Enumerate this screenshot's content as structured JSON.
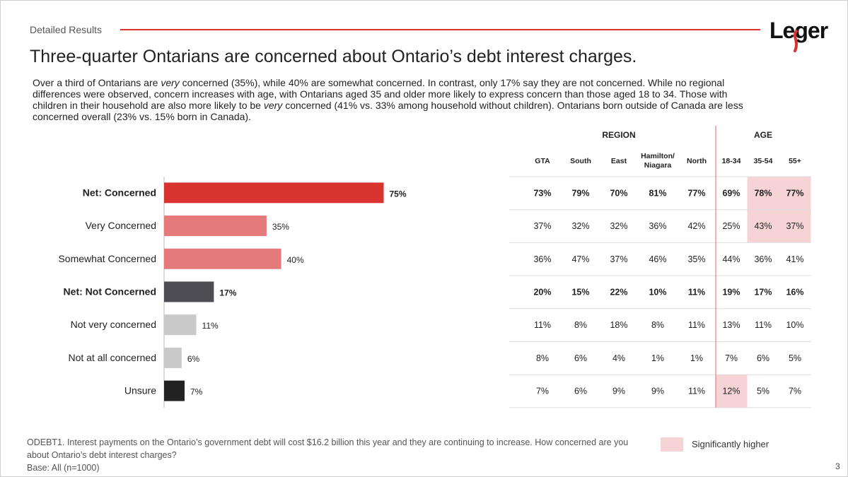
{
  "header": {
    "section_label": "Detailed Results",
    "logo_text": "Leger",
    "title": "Three-quarter Ontarians are concerned about Ontario’s debt interest charges."
  },
  "summary": {
    "s1": "Over a third of Ontarians are ",
    "s1_em": "very",
    "s2": " concerned (35%), while 40% are somewhat concerned. In contrast, only 17% say they are not concerned. While no regional differences were observed, concern increases with age, with Ontarians aged 35 and older more likely to express concern than those aged 18 to 34. Those with children in their household are also more likely to be ",
    "s2_em": "very",
    "s3": " concerned (41% vs. 33% among household without children). Ontarians born outside of Canada are less concerned overall (23% vs. 15% born in Canada)."
  },
  "colors": {
    "accent": "#d9332f",
    "net_concerned": "#d9332f",
    "concerned": "#e47a7a",
    "net_not": "#4d4c52",
    "not": "#c9c9c9",
    "unsure": "#222222",
    "sig_highlight": "#f6d4d6"
  },
  "chart_data": {
    "type": "bar",
    "orientation": "horizontal",
    "categories": [
      "Net: Concerned",
      "Very Concerned",
      "Somewhat Concerned",
      "Net: Not Concerned",
      "Not very concerned",
      "Not at all concerned",
      "Unsure"
    ],
    "values": [
      75,
      35,
      40,
      17,
      11,
      6,
      7
    ],
    "value_labels": [
      "75%",
      "35%",
      "40%",
      "17%",
      "11%",
      "6%",
      "7%"
    ],
    "bold_rows": [
      0,
      3
    ],
    "bar_colors": [
      "#d9332f",
      "#e47a7a",
      "#e47a7a",
      "#4d4c52",
      "#c9c9c9",
      "#c9c9c9",
      "#222222"
    ],
    "xlim": [
      0,
      100
    ],
    "table": {
      "group_region_label": "REGION",
      "group_age_label": "AGE",
      "columns": [
        {
          "label": "GTA",
          "group": "region"
        },
        {
          "label": "South",
          "group": "region"
        },
        {
          "label": "East",
          "group": "region"
        },
        {
          "label": "Hamilton/\nNiagara",
          "group": "region"
        },
        {
          "label": "North",
          "group": "region"
        },
        {
          "label": "18-34",
          "group": "age"
        },
        {
          "label": "35-54",
          "group": "age"
        },
        {
          "label": "55+",
          "group": "age"
        }
      ],
      "rows": [
        [
          "73%",
          "79%",
          "70%",
          "81%",
          "77%",
          "69%",
          "78%",
          "77%"
        ],
        [
          "37%",
          "32%",
          "32%",
          "36%",
          "42%",
          "25%",
          "43%",
          "37%"
        ],
        [
          "36%",
          "47%",
          "37%",
          "46%",
          "35%",
          "44%",
          "36%",
          "41%"
        ],
        [
          "20%",
          "15%",
          "22%",
          "10%",
          "11%",
          "19%",
          "17%",
          "16%"
        ],
        [
          "11%",
          "8%",
          "18%",
          "8%",
          "11%",
          "13%",
          "11%",
          "10%"
        ],
        [
          "8%",
          "6%",
          "4%",
          "1%",
          "1%",
          "7%",
          "6%",
          "5%"
        ],
        [
          "7%",
          "6%",
          "9%",
          "9%",
          "11%",
          "12%",
          "5%",
          "7%"
        ]
      ],
      "significantly_higher": [
        [
          0,
          6
        ],
        [
          0,
          7
        ],
        [
          1,
          6
        ],
        [
          1,
          7
        ],
        [
          6,
          5
        ]
      ]
    }
  },
  "footer": {
    "question": "ODEBT1. Interest payments on the Ontario’s government debt will cost $16.2 billion this year and they are continuing to increase. How concerned are you about Ontario’s debt interest charges?",
    "base": "Base: All (n=1000)",
    "legend_label": "Significantly higher",
    "page_number": "3"
  }
}
